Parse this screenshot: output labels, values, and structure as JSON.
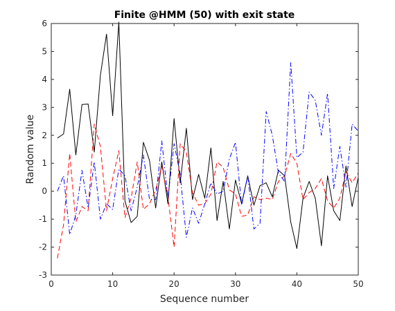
{
  "chart_data": {
    "type": "line",
    "title": "Finite @HMM (50) with exit state",
    "xlabel": "Sequence number",
    "ylabel": "Random value",
    "xlim": [
      0,
      50
    ],
    "ylim": [
      -3,
      6
    ],
    "xticks": [
      0,
      10,
      20,
      30,
      40,
      50
    ],
    "yticks": [
      -3,
      -2,
      -1,
      0,
      1,
      2,
      3,
      4,
      5,
      6
    ],
    "grid": false,
    "legend": "none",
    "x": [
      1,
      2,
      3,
      4,
      5,
      6,
      7,
      8,
      9,
      10,
      11,
      12,
      13,
      14,
      15,
      16,
      17,
      18,
      19,
      20,
      21,
      22,
      23,
      24,
      25,
      26,
      27,
      28,
      29,
      30,
      31,
      32,
      33,
      34,
      35,
      36,
      37,
      38,
      39,
      40,
      41,
      42,
      43,
      44,
      45,
      46,
      47,
      48,
      49,
      50
    ],
    "series": [
      {
        "color": "#000000",
        "style": "solid",
        "values": [
          1.9,
          2.05,
          3.65,
          1.3,
          3.1,
          3.12,
          1.4,
          4.15,
          5.62,
          2.7,
          6.05,
          -0.35,
          -1.12,
          -0.9,
          1.75,
          1.1,
          -0.6,
          1.05,
          -0.45,
          2.6,
          0.3,
          2.25,
          -0.3,
          0.6,
          -0.25,
          1.55,
          -1.05,
          0.35,
          -1.35,
          0.4,
          -0.45,
          0.55,
          -0.5,
          0.2,
          0.3,
          -0.2,
          0.75,
          0.55,
          -1.1,
          -2.05,
          -0.25,
          0.35,
          -0.25,
          -1.95,
          0.55,
          -0.7,
          -1.05,
          0.9,
          -0.55,
          0.5
        ]
      },
      {
        "color": "#ff0000",
        "style": "dashed",
        "values": [
          -2.4,
          -1.2,
          1.35,
          -1.1,
          -0.55,
          -0.7,
          2.4,
          1.6,
          -0.7,
          0.45,
          1.45,
          -0.95,
          -0.25,
          1.05,
          -0.65,
          -0.45,
          0.05,
          0.9,
          -0.2,
          -2.0,
          1.7,
          1.4,
          -0.05,
          -0.5,
          -0.45,
          -0.1,
          1.05,
          0.85,
          0.05,
          -0.1,
          -0.9,
          -0.85,
          -0.2,
          -0.3,
          -0.25,
          -0.3,
          0.35,
          0.55,
          1.35,
          1.0,
          -0.3,
          -0.05,
          0.1,
          0.45,
          -0.35,
          -0.6,
          -0.25,
          0.7,
          0.3,
          0.65
        ]
      },
      {
        "color": "#0000ff",
        "style": "dashdot",
        "values": [
          0.0,
          0.55,
          -1.55,
          -0.85,
          0.75,
          -0.6,
          1.05,
          -1.0,
          -0.45,
          -0.65,
          0.8,
          0.55,
          -0.7,
          0.15,
          1.3,
          -0.3,
          -0.3,
          1.8,
          -0.25,
          1.7,
          0.6,
          -1.65,
          -0.6,
          -1.15,
          -0.45,
          0.3,
          -0.1,
          0.0,
          1.15,
          1.75,
          -0.5,
          0.55,
          -1.35,
          -1.15,
          2.85,
          2.0,
          0.65,
          0.35,
          4.6,
          1.2,
          1.4,
          3.55,
          3.25,
          2.0,
          3.5,
          0.1,
          1.6,
          0.15,
          2.4,
          2.15
        ]
      }
    ]
  }
}
